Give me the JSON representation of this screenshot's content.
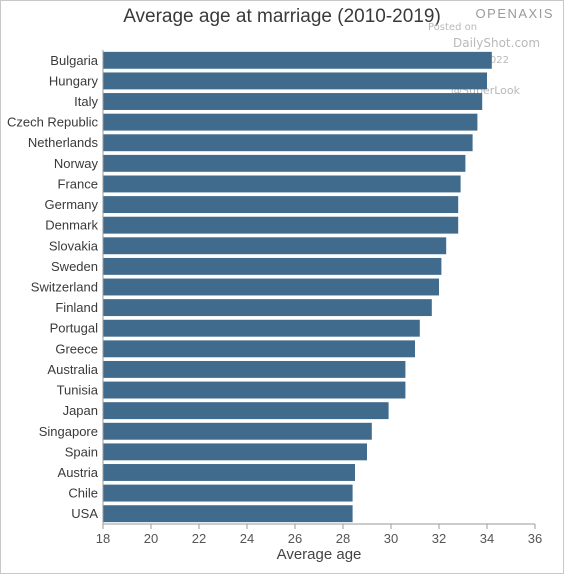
{
  "chart_data": {
    "type": "bar",
    "orientation": "horizontal",
    "title": "Average age at marriage (2010-2019)",
    "xlabel": "Average age",
    "ylabel": "",
    "xlim": [
      18,
      36
    ],
    "xticks": [
      18,
      20,
      22,
      24,
      26,
      28,
      30,
      32,
      34,
      36
    ],
    "grid": false,
    "bar_color": "#406b8d",
    "categories": [
      "Bulgaria",
      "Hungary",
      "Italy",
      "Czech Republic",
      "Netherlands",
      "Norway",
      "France",
      "Germany",
      "Denmark",
      "Slovakia",
      "Sweden",
      "Switzerland",
      "Finland",
      "Portugal",
      "Greece",
      "Australia",
      "Tunisia",
      "Japan",
      "Singapore",
      "Spain",
      "Austria",
      "Chile",
      "USA"
    ],
    "values": [
      34.2,
      34.0,
      33.8,
      33.6,
      33.4,
      33.1,
      32.9,
      32.8,
      32.8,
      32.3,
      32.1,
      32.0,
      31.7,
      31.2,
      31.0,
      30.6,
      30.6,
      29.9,
      29.2,
      29.0,
      28.5,
      28.4,
      28.4
    ]
  },
  "branding": {
    "logo_text": "OPENAXIS"
  },
  "watermark": {
    "posted_on": "Posted on",
    "site": "DailyShot.com",
    "date": "13-Jul-2022",
    "source": "@SuperLook"
  }
}
